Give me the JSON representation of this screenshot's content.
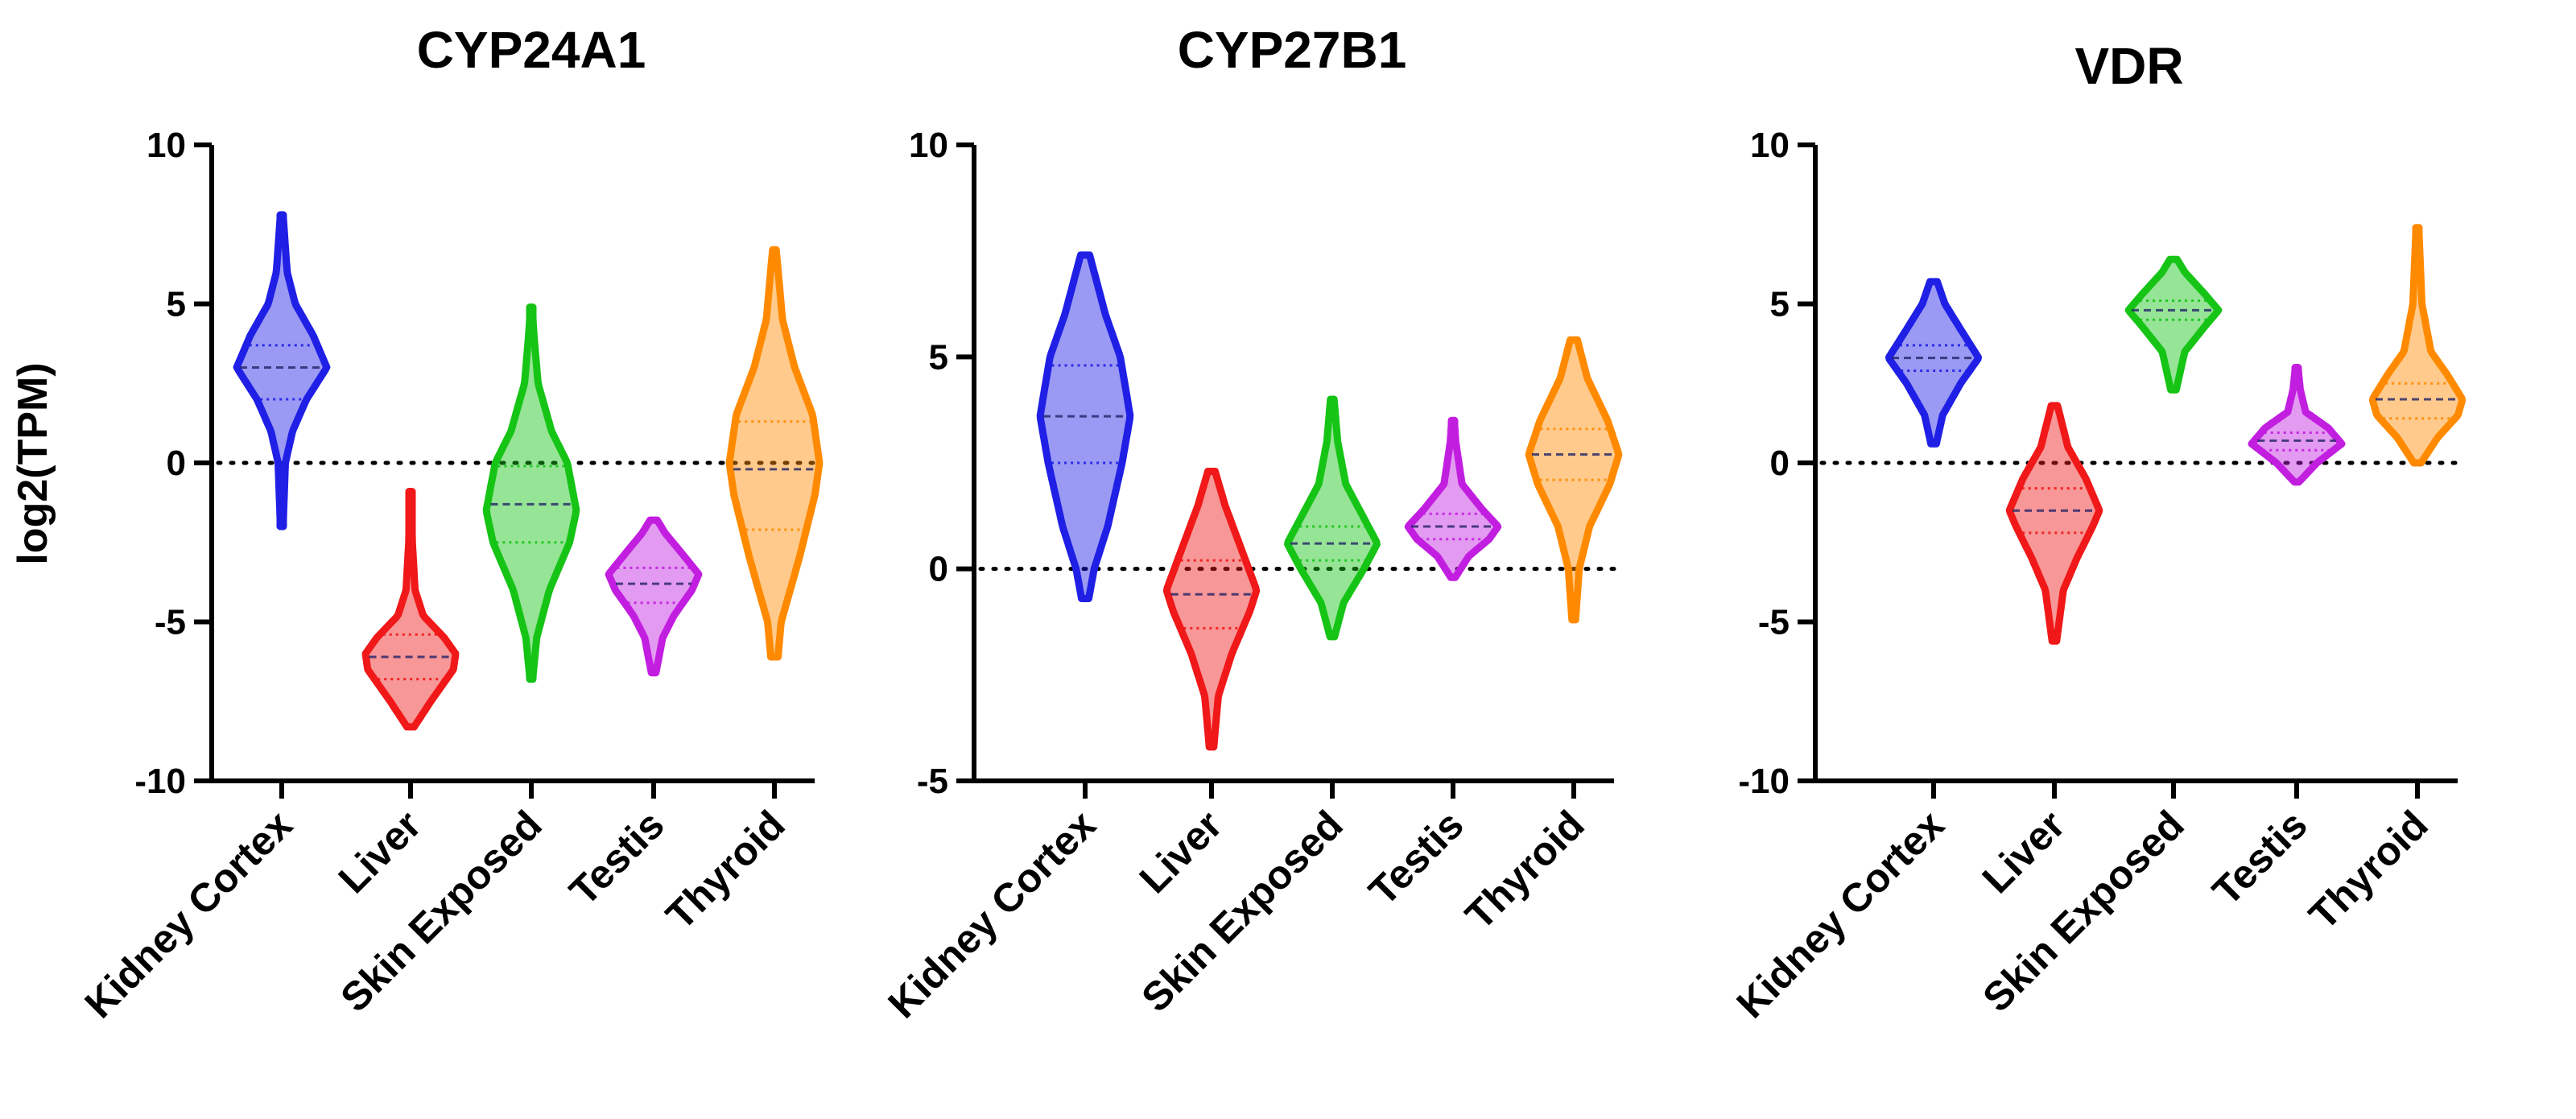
{
  "chart_data": [
    {
      "type": "violin",
      "title": "CYP24A1",
      "ylabel": "log2(TPM)",
      "ylim": [
        -10,
        10
      ],
      "yticks": [
        -10,
        -5,
        0,
        5,
        10
      ],
      "reference_line": 0,
      "categories": [
        "Kidney Cortex",
        "Liver",
        "Skin Exposed",
        "Testis",
        "Thyroid"
      ],
      "series": [
        {
          "name": "Kidney Cortex",
          "color": "#1f1fe6",
          "min": -2.0,
          "max": 7.8,
          "q1": 2.0,
          "median": 3.0,
          "q3": 3.7,
          "profile": [
            [
              -2.0,
              0.03
            ],
            [
              0.0,
              0.08
            ],
            [
              1.0,
              0.24
            ],
            [
              2.0,
              0.55
            ],
            [
              3.0,
              1.0
            ],
            [
              4.0,
              0.7
            ],
            [
              5.0,
              0.3
            ],
            [
              6.0,
              0.12
            ],
            [
              7.8,
              0.03
            ]
          ]
        },
        {
          "name": "Liver",
          "color": "#f01818",
          "min": -8.3,
          "max": -0.9,
          "q1": -6.8,
          "median": -6.1,
          "q3": -5.4,
          "profile": [
            [
              -8.3,
              0.08
            ],
            [
              -7.5,
              0.45
            ],
            [
              -6.5,
              0.95
            ],
            [
              -6.0,
              1.0
            ],
            [
              -5.5,
              0.75
            ],
            [
              -4.8,
              0.28
            ],
            [
              -4.0,
              0.1
            ],
            [
              -2.5,
              0.04
            ],
            [
              -0.9,
              0.02
            ]
          ]
        },
        {
          "name": "Skin Exposed",
          "color": "#16c416",
          "min": -6.8,
          "max": 4.9,
          "q1": -2.5,
          "median": -1.3,
          "q3": -0.1,
          "profile": [
            [
              -6.8,
              0.03
            ],
            [
              -5.5,
              0.12
            ],
            [
              -4.0,
              0.4
            ],
            [
              -2.5,
              0.85
            ],
            [
              -1.5,
              1.0
            ],
            [
              0.0,
              0.8
            ],
            [
              1.0,
              0.45
            ],
            [
              2.5,
              0.15
            ],
            [
              4.0,
              0.06
            ],
            [
              4.9,
              0.02
            ]
          ]
        },
        {
          "name": "Testis",
          "color": "#c21ee0",
          "min": -6.6,
          "max": -1.8,
          "q1": -4.4,
          "median": -3.8,
          "q3": -3.3,
          "profile": [
            [
              -6.6,
              0.05
            ],
            [
              -5.5,
              0.2
            ],
            [
              -4.8,
              0.45
            ],
            [
              -4.0,
              0.85
            ],
            [
              -3.5,
              1.0
            ],
            [
              -2.8,
              0.6
            ],
            [
              -2.2,
              0.25
            ],
            [
              -1.8,
              0.08
            ]
          ]
        },
        {
          "name": "Thyroid",
          "color": "#ff8a00",
          "min": -6.1,
          "max": 6.7,
          "q1": -2.1,
          "median": -0.2,
          "q3": 1.3,
          "profile": [
            [
              -6.1,
              0.08
            ],
            [
              -5.0,
              0.15
            ],
            [
              -3.0,
              0.55
            ],
            [
              -1.0,
              0.9
            ],
            [
              0.0,
              1.0
            ],
            [
              1.5,
              0.85
            ],
            [
              3.0,
              0.45
            ],
            [
              4.5,
              0.18
            ],
            [
              6.7,
              0.04
            ]
          ]
        }
      ]
    },
    {
      "type": "violin",
      "title": "CYP27B1",
      "ylim": [
        -5,
        10
      ],
      "yticks": [
        -5,
        0,
        5,
        10
      ],
      "reference_line": 0,
      "categories": [
        "Kidney Cortex",
        "Liver",
        "Skin Exposed",
        "Testis",
        "Thyroid"
      ],
      "series": [
        {
          "name": "Kidney Cortex",
          "color": "#1f1fe6",
          "min": -0.7,
          "max": 7.4,
          "q1": 2.5,
          "median": 3.6,
          "q3": 4.8,
          "profile": [
            [
              -0.7,
              0.08
            ],
            [
              0.0,
              0.2
            ],
            [
              1.0,
              0.5
            ],
            [
              2.5,
              0.82
            ],
            [
              3.6,
              1.0
            ],
            [
              5.0,
              0.78
            ],
            [
              6.0,
              0.45
            ],
            [
              7.0,
              0.2
            ],
            [
              7.4,
              0.1
            ]
          ]
        },
        {
          "name": "Liver",
          "color": "#f01818",
          "min": -4.2,
          "max": 2.3,
          "q1": -1.4,
          "median": -0.6,
          "q3": 0.2,
          "profile": [
            [
              -4.2,
              0.05
            ],
            [
              -3.0,
              0.15
            ],
            [
              -2.0,
              0.45
            ],
            [
              -1.0,
              0.85
            ],
            [
              -0.5,
              1.0
            ],
            [
              0.5,
              0.65
            ],
            [
              1.5,
              0.3
            ],
            [
              2.3,
              0.08
            ]
          ]
        },
        {
          "name": "Skin Exposed",
          "color": "#16c416",
          "min": -1.6,
          "max": 4.0,
          "q1": 0.2,
          "median": 0.6,
          "q3": 1.0,
          "profile": [
            [
              -1.6,
              0.05
            ],
            [
              -0.8,
              0.25
            ],
            [
              0.0,
              0.7
            ],
            [
              0.6,
              1.0
            ],
            [
              1.2,
              0.7
            ],
            [
              2.0,
              0.3
            ],
            [
              3.0,
              0.12
            ],
            [
              4.0,
              0.04
            ]
          ]
        },
        {
          "name": "Testis",
          "color": "#c21ee0",
          "min": -0.2,
          "max": 3.5,
          "q1": 0.7,
          "median": 1.0,
          "q3": 1.3,
          "profile": [
            [
              -0.2,
              0.05
            ],
            [
              0.3,
              0.35
            ],
            [
              0.7,
              0.8
            ],
            [
              1.0,
              1.0
            ],
            [
              1.4,
              0.65
            ],
            [
              2.0,
              0.2
            ],
            [
              3.0,
              0.06
            ],
            [
              3.5,
              0.03
            ]
          ]
        },
        {
          "name": "Thyroid",
          "color": "#ff8a00",
          "min": -1.2,
          "max": 5.4,
          "q1": 2.1,
          "median": 2.7,
          "q3": 3.3,
          "profile": [
            [
              -1.2,
              0.04
            ],
            [
              0.0,
              0.12
            ],
            [
              1.0,
              0.35
            ],
            [
              2.0,
              0.8
            ],
            [
              2.7,
              1.0
            ],
            [
              3.5,
              0.75
            ],
            [
              4.5,
              0.3
            ],
            [
              5.4,
              0.08
            ]
          ]
        }
      ]
    },
    {
      "type": "violin",
      "title": "VDR",
      "ylim": [
        -10,
        10
      ],
      "yticks": [
        -10,
        -5,
        0,
        5,
        10
      ],
      "reference_line": 0,
      "categories": [
        "Kidney Cortex",
        "Liver",
        "Skin Exposed",
        "Testis",
        "Thyroid"
      ],
      "series": [
        {
          "name": "Kidney Cortex",
          "color": "#1f1fe6",
          "min": 0.6,
          "max": 5.7,
          "q1": 2.9,
          "median": 3.3,
          "q3": 3.7,
          "profile": [
            [
              0.6,
              0.06
            ],
            [
              1.5,
              0.2
            ],
            [
              2.5,
              0.6
            ],
            [
              3.3,
              1.0
            ],
            [
              4.2,
              0.6
            ],
            [
              5.0,
              0.25
            ],
            [
              5.7,
              0.08
            ]
          ]
        },
        {
          "name": "Liver",
          "color": "#f01818",
          "min": -5.6,
          "max": 1.8,
          "q1": -2.2,
          "median": -1.5,
          "q3": -0.8,
          "profile": [
            [
              -5.6,
              0.05
            ],
            [
              -4.0,
              0.2
            ],
            [
              -3.0,
              0.5
            ],
            [
              -2.0,
              0.85
            ],
            [
              -1.5,
              1.0
            ],
            [
              -0.5,
              0.7
            ],
            [
              0.5,
              0.3
            ],
            [
              1.8,
              0.07
            ]
          ]
        },
        {
          "name": "Skin Exposed",
          "color": "#16c416",
          "min": 2.3,
          "max": 6.4,
          "q1": 4.5,
          "median": 4.8,
          "q3": 5.1,
          "profile": [
            [
              2.3,
              0.06
            ],
            [
              3.5,
              0.25
            ],
            [
              4.3,
              0.7
            ],
            [
              4.8,
              1.0
            ],
            [
              5.3,
              0.7
            ],
            [
              6.0,
              0.25
            ],
            [
              6.4,
              0.08
            ]
          ]
        },
        {
          "name": "Testis",
          "color": "#c21ee0",
          "min": -0.6,
          "max": 3.0,
          "q1": 0.4,
          "median": 0.7,
          "q3": 0.95,
          "profile": [
            [
              -0.6,
              0.05
            ],
            [
              0.0,
              0.45
            ],
            [
              0.6,
              1.0
            ],
            [
              1.1,
              0.7
            ],
            [
              1.6,
              0.2
            ],
            [
              2.3,
              0.08
            ],
            [
              3.0,
              0.03
            ]
          ]
        },
        {
          "name": "Thyroid",
          "color": "#ff8a00",
          "min": 0.0,
          "max": 7.4,
          "q1": 1.4,
          "median": 2.0,
          "q3": 2.5,
          "profile": [
            [
              0.0,
              0.08
            ],
            [
              0.8,
              0.45
            ],
            [
              1.5,
              0.9
            ],
            [
              2.0,
              1.0
            ],
            [
              2.8,
              0.65
            ],
            [
              3.5,
              0.3
            ],
            [
              5.0,
              0.1
            ],
            [
              7.4,
              0.03
            ]
          ]
        }
      ]
    }
  ]
}
